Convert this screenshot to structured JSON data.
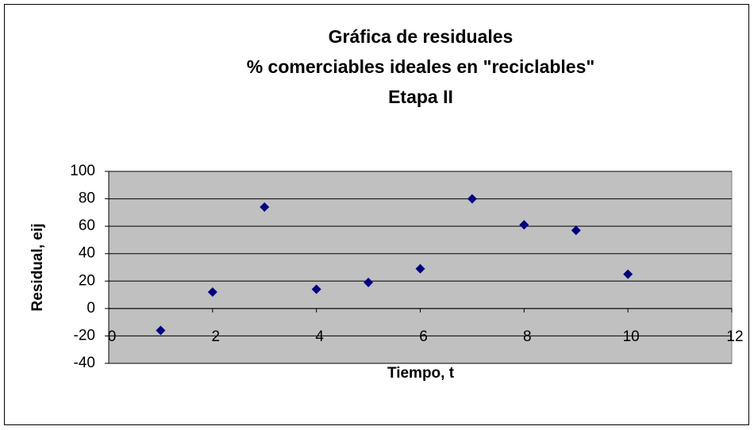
{
  "chart_data": {
    "type": "scatter",
    "title": [
      "Gráfica de residuales",
      "% comerciables ideales en \"reciclables\"",
      "Etapa II"
    ],
    "xlabel": "Tiempo, t",
    "ylabel": "Residual, eij",
    "series": [
      {
        "name": "Residual",
        "color": "#000080",
        "x": [
          1,
          2,
          3,
          4,
          5,
          6,
          7,
          8,
          9,
          10
        ],
        "values": [
          -16,
          12,
          74,
          14,
          19,
          29,
          80,
          61,
          57,
          25
        ]
      }
    ],
    "xlim": [
      0,
      12
    ],
    "xticks": [
      0,
      2,
      4,
      6,
      8,
      10,
      12
    ],
    "ylim": [
      -40,
      100
    ],
    "yticks": [
      -40,
      -20,
      0,
      20,
      40,
      60,
      80,
      100
    ],
    "grid": true,
    "plot_background": "#c0c0c0"
  }
}
